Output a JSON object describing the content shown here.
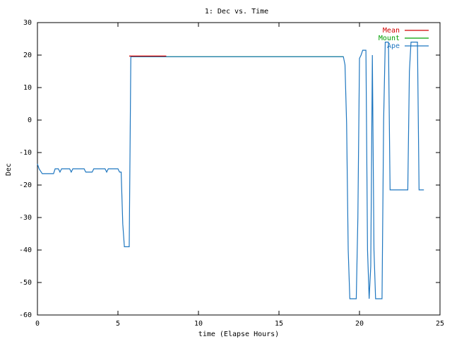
{
  "chart_data": {
    "type": "line",
    "title": "1: Dec vs. Time",
    "x_label": "time (Elapse Hours)",
    "y_label": "Dec",
    "xlim": [
      0,
      25
    ],
    "xticks": [
      0,
      5,
      10,
      15,
      20,
      25
    ],
    "ylim": [
      -60,
      30
    ],
    "yticks": [
      -60,
      -50,
      -40,
      -30,
      -20,
      -10,
      0,
      10,
      20,
      30
    ],
    "legend": "top-right",
    "series": [
      {
        "name": "Mount",
        "color": "#00a000",
        "x": [
          5.8,
          19.0
        ],
        "values": [
          19.5,
          19.5
        ]
      },
      {
        "name": "Ape",
        "color": "#1f77c0",
        "x": [
          0,
          0.1,
          0.3,
          1.0,
          1.1,
          1.3,
          1.4,
          1.5,
          2.0,
          2.1,
          2.2,
          2.9,
          3.0,
          3.4,
          3.5,
          4.2,
          4.3,
          4.4,
          5.0,
          5.1,
          5.2,
          5.3,
          5.4,
          5.7,
          5.75,
          5.8,
          19.0,
          19.1,
          19.2,
          19.3,
          19.4,
          19.8,
          19.9,
          20.0,
          20.1,
          20.2,
          20.4,
          20.5,
          20.6,
          20.7,
          20.8,
          20.9,
          21.0,
          21.4,
          21.5,
          21.6,
          21.8,
          21.9,
          23.0,
          23.1,
          23.2,
          23.6,
          23.7,
          24.0
        ],
        "values": [
          -13.5,
          -15,
          -16.5,
          -16.5,
          -15,
          -15,
          -16,
          -15,
          -15,
          -16,
          -15,
          -15,
          -16,
          -16,
          -15,
          -15,
          -16,
          -15,
          -15,
          -16,
          -16,
          -32,
          -39,
          -39,
          -10,
          19.5,
          19.5,
          17,
          -1,
          -40,
          -55,
          -55,
          -30,
          19,
          20,
          21.5,
          21.5,
          -40,
          -55,
          -45,
          20,
          -40,
          -55,
          -55,
          0,
          24,
          24,
          -21.5,
          -21.5,
          15,
          24,
          24,
          -21.5,
          -21.5
        ]
      },
      {
        "name": "Mean",
        "color": "#d00000",
        "x": [
          5.7,
          8.0
        ],
        "values": [
          19.7,
          19.7
        ]
      }
    ]
  }
}
